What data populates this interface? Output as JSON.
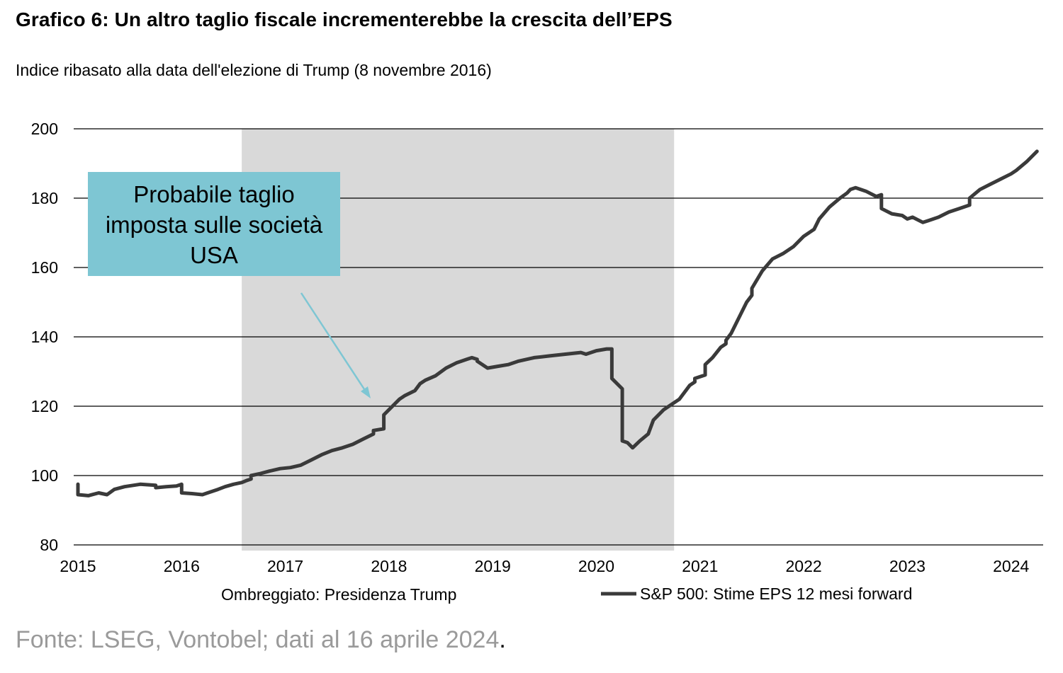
{
  "title": "Grafico 6: Un altro taglio fiscale incrementerebbe la crescita dell’EPS",
  "subtitle": "Indice ribasato alla data dell'elezione di Trump (8 novembre 2016)",
  "source": {
    "text": "Fonte: LSEG, Vontobel; dati al 16 aprile 2024",
    "period": "."
  },
  "colors": {
    "line": "#3a3a3a",
    "shade": "#d9d9d9",
    "annotation_box": "#7ec6d3",
    "annotation_arrow": "#7ec6d3",
    "grid": "#000000"
  },
  "chart_data": {
    "type": "line",
    "title": "Grafico 6: Un altro taglio fiscale incrementerebbe la crescita dell’EPS",
    "ylabel": "",
    "xlabel": "",
    "ylim": [
      80,
      200
    ],
    "xlim": [
      2015.0,
      2024.3
    ],
    "grid": true,
    "y_ticks": [
      "80",
      "100",
      "120",
      "140",
      "160",
      "180",
      "200"
    ],
    "x_ticks": [
      "2015",
      "2016",
      "2017",
      "2018",
      "2019",
      "2020",
      "2021",
      "2022",
      "2023",
      "2024"
    ],
    "shaded_region": {
      "label": "Ombreggiato: Presidenza Trump",
      "x": [
        2016.58,
        2020.75
      ]
    },
    "annotation": {
      "lines": [
        "Probabile taglio",
        "imposta sulle società",
        "USA"
      ],
      "arrow_to": [
        2017.85,
        122
      ]
    },
    "legend_position": "bottom",
    "series": [
      {
        "name": "S&P 500: Stime EPS 12 mesi forward",
        "x": [
          2015.0,
          2015.0,
          2015.1,
          2015.2,
          2015.28,
          2015.35,
          2015.45,
          2015.6,
          2015.75,
          2015.75,
          2015.85,
          2015.95,
          2016.0,
          2016.0,
          2016.1,
          2016.2,
          2016.25,
          2016.35,
          2016.42,
          2016.5,
          2016.58,
          2016.62,
          2016.67,
          2016.67,
          2016.75,
          2016.85,
          2016.95,
          2017.05,
          2017.15,
          2017.25,
          2017.35,
          2017.45,
          2017.55,
          2017.65,
          2017.75,
          2017.85,
          2017.85,
          2017.95,
          2017.95,
          2018.1,
          2018.15,
          2018.25,
          2018.3,
          2018.35,
          2018.45,
          2018.55,
          2018.65,
          2018.75,
          2018.8,
          2018.85,
          2018.85,
          2018.95,
          2019.05,
          2019.15,
          2019.25,
          2019.4,
          2019.55,
          2019.7,
          2019.85,
          2019.9,
          2020.0,
          2020.1,
          2020.15,
          2020.15,
          2020.25,
          2020.25,
          2020.3,
          2020.35,
          2020.42,
          2020.5,
          2020.55,
          2020.65,
          2020.75,
          2020.8,
          2020.9,
          2020.95,
          2020.95,
          2021.05,
          2021.05,
          2021.12,
          2021.2,
          2021.25,
          2021.25,
          2021.3,
          2021.4,
          2021.45,
          2021.5,
          2021.5,
          2021.6,
          2021.7,
          2021.8,
          2021.9,
          2022.0,
          2022.1,
          2022.15,
          2022.25,
          2022.35,
          2022.42,
          2022.45,
          2022.5,
          2022.6,
          2022.7,
          2022.75,
          2022.75,
          2022.85,
          2022.95,
          2023.0,
          2023.05,
          2023.15,
          2023.2,
          2023.3,
          2023.4,
          2023.5,
          2023.6,
          2023.6,
          2023.7,
          2023.8,
          2023.9,
          2024.0,
          2024.05,
          2024.15,
          2024.25
        ],
        "y": [
          97.5,
          94.5,
          94.2,
          95.0,
          94.5,
          96.0,
          96.8,
          97.5,
          97.2,
          96.5,
          96.8,
          97.0,
          97.5,
          95.0,
          94.8,
          94.5,
          95.0,
          96.0,
          96.8,
          97.5,
          98.0,
          98.5,
          99.0,
          100.0,
          100.5,
          101.3,
          102.0,
          102.3,
          103.0,
          104.5,
          106.0,
          107.2,
          108.0,
          109.0,
          110.5,
          112.0,
          113.0,
          113.5,
          117.5,
          122.0,
          123.0,
          124.5,
          126.5,
          127.5,
          128.8,
          131.0,
          132.5,
          133.5,
          134.0,
          133.5,
          133.0,
          131.0,
          131.5,
          132.0,
          133.0,
          134.0,
          134.5,
          135.0,
          135.5,
          135.0,
          136.0,
          136.5,
          136.5,
          128.0,
          125.0,
          110.0,
          109.5,
          108.0,
          110.0,
          112.0,
          116.0,
          119.0,
          121.0,
          122.0,
          126.0,
          127.0,
          128.0,
          129.0,
          132.0,
          134.0,
          137.0,
          138.0,
          139.0,
          141.0,
          147.0,
          150.0,
          152.0,
          154.0,
          159.0,
          162.5,
          164.0,
          166.0,
          169.0,
          171.0,
          174.0,
          177.5,
          180.0,
          181.5,
          182.5,
          183.0,
          182.0,
          180.5,
          181.0,
          177.0,
          175.5,
          175.0,
          174.0,
          174.5,
          173.0,
          173.5,
          174.5,
          176.0,
          177.0,
          178.0,
          180.0,
          182.5,
          184.0,
          185.5,
          187.0,
          188.0,
          190.5,
          193.5
        ]
      }
    ]
  }
}
